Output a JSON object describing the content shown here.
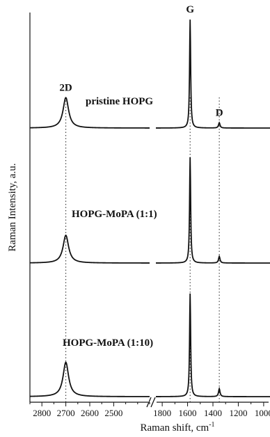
{
  "chart_data": {
    "type": "line",
    "xlabel": "Raman shift, cm",
    "xlabel_superscript": "-1",
    "ylabel": "Raman Intensity, a.u.",
    "x_direction": "descending",
    "x_axis_break": true,
    "x_segments": [
      {
        "range": [
          2850,
          2350
        ],
        "ticks": [
          2800,
          2700,
          2600,
          2500
        ],
        "tick_labels": [
          "2800",
          "2700",
          "2600",
          "2500"
        ]
      },
      {
        "range": [
          1850,
          950
        ],
        "ticks": [
          1800,
          1600,
          1400,
          1200,
          1000
        ],
        "tick_labels": [
          "1800",
          "1600",
          "1400",
          "1200",
          "1000"
        ]
      }
    ],
    "peak_labels": [
      {
        "text": "2D",
        "x": 2700
      },
      {
        "text": "G",
        "x": 1580
      },
      {
        "text": "D",
        "x": 1350
      }
    ],
    "guide_lines_x": [
      2700,
      1580,
      1350
    ],
    "series": [
      {
        "label": "pristine HOPG",
        "offset": 2.0,
        "peaks": [
          {
            "x": 2700,
            "height": 0.23
          },
          {
            "x": 1580,
            "height": 0.82
          },
          {
            "x": 1350,
            "height": 0.04
          }
        ]
      },
      {
        "label": "HOPG-MoPA (1:1)",
        "offset": 1.0,
        "peaks": [
          {
            "x": 2700,
            "height": 0.21
          },
          {
            "x": 1580,
            "height": 0.8
          },
          {
            "x": 1350,
            "height": 0.05
          }
        ]
      },
      {
        "label": "HOPG-MoPA (1:10)",
        "offset": 0.0,
        "peaks": [
          {
            "x": 2700,
            "height": 0.26
          },
          {
            "x": 1580,
            "height": 0.78
          },
          {
            "x": 1350,
            "height": 0.06
          }
        ]
      }
    ],
    "grid": false,
    "legend": "none"
  }
}
